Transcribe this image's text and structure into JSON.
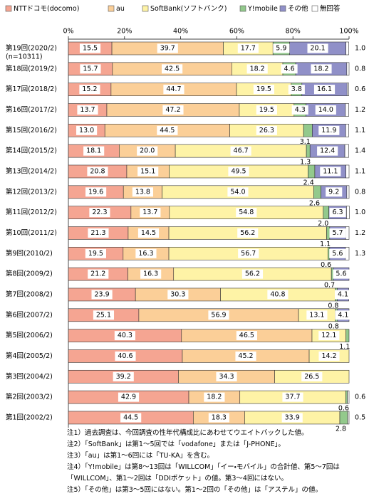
{
  "chart_data": {
    "type": "stacked_barh",
    "categories": [
      "第19回(2020/2)",
      "第18回(2019/2)",
      "第17回(2018/2)",
      "第16回(2017/2)",
      "第15回(2016/2)",
      "第14回(2015/2)",
      "第13回(2014/2)",
      "第12回(2013/2)",
      "第11回(2012/2)",
      "第10回(2011/2)",
      "第9回(2010/2)",
      "第8回(2009/2)",
      "第7回(2008/2)",
      "第6回(2007/2)",
      "第5回(2006/2)",
      "第4回(2005/2)",
      "第3回(2004/2)",
      "第2回(2003/2)",
      "第1回(2002/2)"
    ],
    "sample_label": "(n=10311)",
    "xlim": [
      0,
      100
    ],
    "xticks": [
      {
        "value": 0,
        "label": "0%"
      },
      {
        "value": 20,
        "label": "20%"
      },
      {
        "value": 40,
        "label": "40%"
      },
      {
        "value": 60,
        "label": "60%"
      },
      {
        "value": 80,
        "label": "80%"
      },
      {
        "value": 100,
        "label": "100%"
      }
    ],
    "series": [
      {
        "name": "NTTドコモ(docomo)",
        "color": "#f5a592",
        "values": [
          15.5,
          15.7,
          15.2,
          13.7,
          13.0,
          18.1,
          20.8,
          19.6,
          22.3,
          21.3,
          19.5,
          21.2,
          23.9,
          25.1,
          40.3,
          40.6,
          39.2,
          42.9,
          44.5
        ],
        "value_labels": [
          "15.5",
          "15.7",
          "15.2",
          "13.7",
          "13.0",
          "18.1",
          "20.8",
          "19.6",
          "22.3",
          "21.3",
          "19.5",
          "21.2",
          "23.9",
          "25.1",
          "40.3",
          "40.6",
          "39.2",
          "42.9",
          "44.5"
        ]
      },
      {
        "name": "au",
        "color": "#fbcf98",
        "values": [
          39.7,
          42.5,
          44.7,
          47.2,
          44.5,
          20.0,
          15.1,
          13.8,
          13.7,
          14.5,
          16.3,
          16.3,
          30.3,
          56.9,
          46.5,
          45.2,
          34.3,
          18.2,
          18.3
        ],
        "value_labels": [
          "39.7",
          "42.5",
          "44.7",
          "47.2",
          "44.5",
          "20.0",
          "15.1",
          "13.8",
          "13.7",
          "14.5",
          "16.3",
          "16.3",
          "30.3",
          "56.9",
          "46.5",
          "45.2",
          "34.3",
          "18.2",
          "18.3"
        ]
      },
      {
        "name": "SoftBank(ソフトバンク)",
        "color": "#fef3a6",
        "values": [
          17.7,
          18.2,
          19.5,
          19.5,
          26.3,
          46.7,
          49.5,
          54.0,
          54.8,
          56.2,
          56.7,
          56.2,
          40.8,
          13.1,
          12.1,
          14.2,
          26.5,
          37.7,
          33.9
        ],
        "value_labels": [
          "17.7",
          "18.2",
          "19.5",
          "19.5",
          "26.3",
          "46.7",
          "49.5",
          "54.0",
          "54.8",
          "56.2",
          "56.7",
          "56.2",
          "40.8",
          "13.1",
          "12.1",
          "14.2",
          "26.5",
          "37.7",
          "33.9"
        ]
      },
      {
        "name": "Y!mobile",
        "color": "#93c98c",
        "values": [
          5.9,
          4.6,
          3.8,
          4.3,
          3.1,
          1.3,
          2.4,
          2.6,
          2.0,
          1.1,
          0.6,
          0.7,
          0.8,
          0.8,
          1.1,
          null,
          null,
          0.6,
          2.8
        ],
        "value_labels": [
          "5.9",
          "4.6",
          "3.8",
          "4.3",
          "3.1",
          "1.3",
          "2.4",
          "2.6",
          "2.0",
          "1.1",
          "0.6",
          "0.7",
          "0.8",
          "0.8",
          "1.1",
          null,
          null,
          "0.6",
          "2.8"
        ]
      },
      {
        "name": "その他",
        "color": "#9090c8",
        "values": [
          20.1,
          18.2,
          16.1,
          14.0,
          11.9,
          12.4,
          11.1,
          9.2,
          6.3,
          5.7,
          5.6,
          5.6,
          4.1,
          4.1,
          null,
          null,
          null,
          null,
          null
        ],
        "value_labels": [
          "20.1",
          "18.2",
          "16.1",
          "14.0",
          "11.9",
          "12.4",
          "11.1",
          "9.2",
          "6.3",
          "5.7",
          "5.6",
          "5.6",
          "4.1",
          "4.1",
          null,
          null,
          null,
          null,
          null
        ]
      },
      {
        "name": "無回答",
        "color": "#ffffff",
        "values": [
          1.0,
          0.8,
          0.6,
          1.2,
          1.1,
          1.4,
          1.1,
          0.8,
          1.0,
          1.2,
          1.3,
          null,
          null,
          null,
          null,
          null,
          null,
          0.6,
          0.5
        ],
        "value_labels": [
          "1.0",
          "0.8",
          "0.6",
          "1.2",
          "1.1",
          "1.4",
          "1.1",
          "0.8",
          "1.0",
          "1.2",
          "1.3",
          null,
          null,
          null,
          null,
          null,
          null,
          "0.6",
          "0.5"
        ]
      }
    ],
    "notes": [
      "注1）過去調査は、今回調査の性年代構成比にあわせてウエイトバックした値。",
      "注2）「SoftBank」は第1～5回では「vodafone」または「J-PHONE」。",
      "注3）「au」は第1～6回には「TU-KA」を含む。",
      "注4）「Y!mobile」は第8～13回は「WILLCOM」「イー・モバイル」の合計値、第5～7回は「WILLCOM」、第1～2回は「DDIポケット」の値。第3～4回にはない。",
      "注5）「その他」は第3～5回にはない。第1～2回の「その他」は「アステル」の値。"
    ]
  }
}
